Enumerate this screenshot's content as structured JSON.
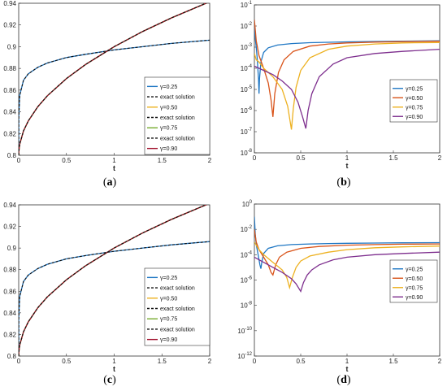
{
  "colors": {
    "g025": "#1f77c4",
    "g050": "#d95319",
    "g075": "#edb120",
    "g075_left": "#77ac30",
    "g090_left": "#a2142f",
    "g090_right": "#7e2f8e",
    "exact": "#111111"
  },
  "chart_data": [
    {
      "id": "a",
      "type": "line",
      "caption": "a",
      "xlabel": "t",
      "ylabel": "",
      "xlim": [
        0,
        2
      ],
      "ylim": [
        0.8,
        0.94
      ],
      "xticks": [
        "0",
        "0.5",
        "1",
        "1.5",
        "2"
      ],
      "yticks": [
        "0.8",
        "0.82",
        "0.84",
        "0.86",
        "0.88",
        "0.9",
        "0.92",
        "0.94"
      ],
      "legend_position": "center-right",
      "legend": [
        "γ=0.25",
        "exact solution",
        "γ=0.50",
        "exact solution",
        "γ=0.75",
        "exact solution",
        "γ=0.90"
      ],
      "series": [
        {
          "name": "γ=0.25",
          "color_key": "g025",
          "x": [
            0,
            0.001,
            0.01,
            0.05,
            0.1,
            0.2,
            0.3,
            0.5,
            0.7,
            1.0,
            1.3,
            1.6,
            2.0
          ],
          "y": [
            0.8,
            0.835,
            0.855,
            0.869,
            0.875,
            0.881,
            0.885,
            0.89,
            0.893,
            0.897,
            0.9,
            0.903,
            0.906
          ]
        },
        {
          "name": "γ=0.50",
          "color_key": "g075",
          "x": [
            0,
            0.001,
            0.01,
            0.05,
            0.1,
            0.2,
            0.3,
            0.5,
            0.7,
            1.0,
            1.3,
            1.6,
            2.0
          ],
          "y": [
            0.8,
            0.8032,
            0.81,
            0.8224,
            0.8316,
            0.8447,
            0.8548,
            0.8707,
            0.8836,
            0.9,
            0.9141,
            0.9265,
            0.9414
          ]
        },
        {
          "name": "γ=0.75",
          "color_key": "g075_left",
          "x": [
            0,
            0.001,
            0.01,
            0.05,
            0.1,
            0.2,
            0.3,
            0.5,
            0.7,
            1.0,
            1.3,
            1.6,
            2.0
          ],
          "y": [
            0.8,
            0.8032,
            0.81,
            0.8224,
            0.8316,
            0.8447,
            0.8548,
            0.8707,
            0.8836,
            0.9,
            0.9141,
            0.9265,
            0.9414
          ]
        },
        {
          "name": "γ=0.90",
          "color_key": "g090_left",
          "x": [
            0,
            0.001,
            0.01,
            0.05,
            0.1,
            0.2,
            0.3,
            0.5,
            0.7,
            1.0,
            1.3,
            1.6,
            2.0
          ],
          "y": [
            0.8,
            0.8032,
            0.81,
            0.8224,
            0.8316,
            0.8447,
            0.8548,
            0.8707,
            0.8836,
            0.9,
            0.9141,
            0.9265,
            0.9414
          ]
        }
      ]
    },
    {
      "id": "b",
      "type": "line",
      "caption": "b",
      "xlabel": "t",
      "ylabel": "",
      "yscale": "log",
      "xlim": [
        0,
        2
      ],
      "ylim_exp": [
        -8,
        -1
      ],
      "xticks": [
        "0",
        "0.5",
        "1",
        "1.5",
        "2"
      ],
      "ytick_exponents": [
        "-8",
        "-7",
        "-6",
        "-5",
        "-4",
        "-3",
        "-2",
        "-1"
      ],
      "ytick_base": "10",
      "legend_position": "center-right",
      "legend": [
        "γ=0.25",
        "γ=0.50",
        "γ=0.75",
        "γ=0.90"
      ],
      "series": [
        {
          "name": "γ=0.25",
          "color_key": "g025",
          "x": [
            0.0,
            0.01,
            0.02,
            0.03,
            0.045,
            0.05,
            0.055,
            0.07,
            0.1,
            0.15,
            0.25,
            0.4,
            0.6,
            0.8,
            1.0,
            1.3,
            1.6,
            2.0
          ],
          "y": [
            -2.0,
            -2.6,
            -3.0,
            -3.5,
            -4.5,
            -5.2,
            -4.5,
            -3.7,
            -3.25,
            -3.03,
            -2.9,
            -2.83,
            -2.79,
            -2.77,
            -2.75,
            -2.73,
            -2.72,
            -2.7
          ]
        },
        {
          "name": "γ=0.50",
          "color_key": "g050",
          "x": [
            0.0,
            0.02,
            0.05,
            0.1,
            0.15,
            0.18,
            0.2,
            0.22,
            0.26,
            0.32,
            0.42,
            0.6,
            0.8,
            1.0,
            1.3,
            1.6,
            2.0
          ],
          "y": [
            -1.7,
            -2.7,
            -3.4,
            -4.0,
            -4.7,
            -5.5,
            -6.3,
            -5.2,
            -4.2,
            -3.6,
            -3.2,
            -2.95,
            -2.85,
            -2.8,
            -2.76,
            -2.74,
            -2.72
          ]
        },
        {
          "name": "γ=0.75",
          "color_key": "g075",
          "x": [
            0.0,
            0.02,
            0.05,
            0.1,
            0.2,
            0.3,
            0.36,
            0.4,
            0.42,
            0.45,
            0.5,
            0.6,
            0.8,
            1.0,
            1.3,
            1.6,
            2.0
          ],
          "y": [
            -3.3,
            -3.6,
            -3.7,
            -4.0,
            -4.4,
            -5.0,
            -5.8,
            -6.9,
            -5.9,
            -4.9,
            -4.1,
            -3.5,
            -3.1,
            -2.95,
            -2.85,
            -2.8,
            -2.78
          ]
        },
        {
          "name": "γ=0.90",
          "color_key": "g090_right",
          "x": [
            0.0,
            0.05,
            0.1,
            0.2,
            0.3,
            0.4,
            0.47,
            0.52,
            0.555,
            0.58,
            0.62,
            0.7,
            0.85,
            1.0,
            1.3,
            1.6,
            2.0
          ],
          "y": [
            -3.9,
            -4.0,
            -4.1,
            -4.3,
            -4.6,
            -5.0,
            -5.6,
            -6.3,
            -6.85,
            -6.0,
            -5.2,
            -4.4,
            -3.8,
            -3.5,
            -3.3,
            -3.2,
            -3.1
          ]
        }
      ]
    },
    {
      "id": "c",
      "type": "line",
      "caption": "c",
      "xlabel": "t",
      "ylabel": "",
      "xlim": [
        0,
        2
      ],
      "ylim": [
        0.8,
        0.94
      ],
      "xticks": [
        "0",
        "0.5",
        "1",
        "1.5",
        "2"
      ],
      "yticks": [
        "0.8",
        "0.82",
        "0.84",
        "0.86",
        "0.88",
        "0.9",
        "0.92",
        "0.94"
      ],
      "legend_position": "center-right",
      "legend": [
        "γ=0.25",
        "exact solution",
        "γ=0.50",
        "exact solution",
        "γ=0.75",
        "exact solution",
        "γ=0.90"
      ],
      "series": [
        {
          "name": "γ=0.25",
          "color_key": "g025",
          "x": [
            0,
            0.001,
            0.01,
            0.05,
            0.1,
            0.2,
            0.3,
            0.5,
            0.7,
            1.0,
            1.3,
            1.6,
            2.0
          ],
          "y": [
            0.8,
            0.835,
            0.855,
            0.869,
            0.875,
            0.881,
            0.885,
            0.89,
            0.893,
            0.897,
            0.9,
            0.903,
            0.906
          ]
        },
        {
          "name": "γ=0.50",
          "color_key": "g075",
          "x": [
            0,
            0.001,
            0.01,
            0.05,
            0.1,
            0.2,
            0.3,
            0.5,
            0.7,
            1.0,
            1.3,
            1.6,
            2.0
          ],
          "y": [
            0.8,
            0.8032,
            0.81,
            0.8224,
            0.8316,
            0.8447,
            0.8548,
            0.8707,
            0.8836,
            0.9,
            0.9141,
            0.9265,
            0.9414
          ]
        },
        {
          "name": "γ=0.75",
          "color_key": "g075_left",
          "x": [
            0,
            0.001,
            0.01,
            0.05,
            0.1,
            0.2,
            0.3,
            0.5,
            0.7,
            1.0,
            1.3,
            1.6,
            2.0
          ],
          "y": [
            0.8,
            0.8032,
            0.81,
            0.8224,
            0.8316,
            0.8447,
            0.8548,
            0.8707,
            0.8836,
            0.9,
            0.9141,
            0.9265,
            0.9414
          ]
        },
        {
          "name": "γ=0.90",
          "color_key": "g090_left",
          "x": [
            0,
            0.001,
            0.01,
            0.05,
            0.1,
            0.2,
            0.3,
            0.5,
            0.7,
            1.0,
            1.3,
            1.6,
            2.0
          ],
          "y": [
            0.8,
            0.8032,
            0.81,
            0.8224,
            0.8316,
            0.8447,
            0.8548,
            0.8707,
            0.8836,
            0.9,
            0.9141,
            0.9265,
            0.9414
          ]
        }
      ]
    },
    {
      "id": "d",
      "type": "line",
      "caption": "d",
      "xlabel": "t",
      "ylabel": "",
      "yscale": "log",
      "xlim": [
        0,
        2
      ],
      "ylim_exp": [
        -12,
        0
      ],
      "xticks": [
        "0",
        "0.5",
        "1",
        "1.5",
        "2"
      ],
      "ytick_exponents": [
        "-12",
        "-10",
        "-8",
        "-6",
        "-4",
        "-2",
        "0"
      ],
      "ytick_base": "10",
      "legend_position": "center-right",
      "legend": [
        "γ=0.25",
        "γ=0.50",
        "γ=0.75",
        "γ=0.90"
      ],
      "series": [
        {
          "name": "γ=0.25",
          "color_key": "g025",
          "x": [
            0.0,
            0.01,
            0.02,
            0.04,
            0.06,
            0.07,
            0.08,
            0.1,
            0.15,
            0.25,
            0.4,
            0.6,
            0.8,
            1.0,
            1.3,
            1.6,
            2.0
          ],
          "y": [
            -1.0,
            -2.4,
            -3.2,
            -4.0,
            -4.8,
            -5.1,
            -4.6,
            -3.9,
            -3.5,
            -3.3,
            -3.2,
            -3.15,
            -3.12,
            -3.1,
            -3.08,
            -3.06,
            -3.05
          ]
        },
        {
          "name": "γ=0.50",
          "color_key": "g050",
          "x": [
            0.0,
            0.02,
            0.05,
            0.1,
            0.15,
            0.18,
            0.2,
            0.23,
            0.27,
            0.35,
            0.5,
            0.7,
            1.0,
            1.3,
            1.6,
            2.0
          ],
          "y": [
            -2.0,
            -3.0,
            -3.6,
            -4.2,
            -4.8,
            -5.4,
            -5.6,
            -4.8,
            -4.2,
            -3.8,
            -3.5,
            -3.35,
            -3.25,
            -3.2,
            -3.17,
            -3.15
          ]
        },
        {
          "name": "γ=0.75",
          "color_key": "g075",
          "x": [
            0.0,
            0.05,
            0.1,
            0.2,
            0.3,
            0.35,
            0.38,
            0.41,
            0.45,
            0.5,
            0.6,
            0.8,
            1.0,
            1.3,
            1.6,
            2.0
          ],
          "y": [
            -3.0,
            -3.6,
            -4.0,
            -4.6,
            -5.2,
            -5.8,
            -6.6,
            -5.8,
            -5.0,
            -4.5,
            -4.1,
            -3.8,
            -3.6,
            -3.45,
            -3.38,
            -3.32
          ]
        },
        {
          "name": "γ=0.90",
          "color_key": "g090_right",
          "x": [
            0.0,
            0.05,
            0.1,
            0.2,
            0.3,
            0.4,
            0.45,
            0.5,
            0.53,
            0.57,
            0.62,
            0.7,
            0.85,
            1.0,
            1.3,
            1.6,
            2.0
          ],
          "y": [
            -4.2,
            -4.4,
            -4.6,
            -5.0,
            -5.4,
            -5.9,
            -6.3,
            -6.9,
            -6.2,
            -5.6,
            -5.2,
            -4.8,
            -4.4,
            -4.2,
            -4.0,
            -3.9,
            -3.8
          ]
        }
      ]
    }
  ]
}
